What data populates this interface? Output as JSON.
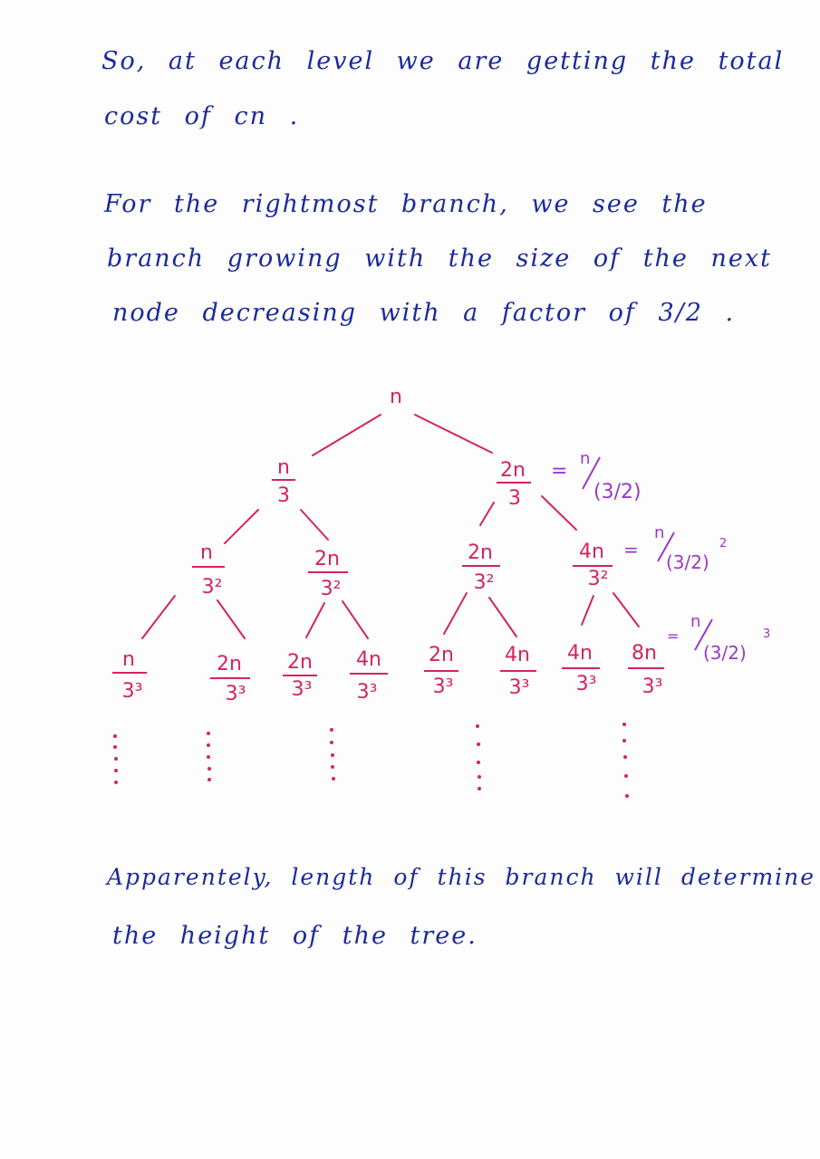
{
  "text": {
    "p1_line1": "So, at each level we are getting the total",
    "p1_line2": "cost of cn .",
    "p2_line1": "For the rightmost branch, we see the",
    "p2_line2": "branch growing with the size of the next",
    "p2_line3": "node decreasing with a factor of 3/2 .",
    "p3_line1": "Apparentely, length of this branch will determine",
    "p3_line2": "the height of the tree."
  },
  "tree": {
    "root": "n",
    "level1": [
      {
        "num": "n",
        "den": "3"
      },
      {
        "num": "2n",
        "den": "3"
      }
    ],
    "level2": [
      {
        "num": "n",
        "den": "3²"
      },
      {
        "num": "2n",
        "den": "3²"
      },
      {
        "num": "2n",
        "den": "3²"
      },
      {
        "num": "4n",
        "den": "3²"
      }
    ],
    "level3": [
      {
        "num": "n",
        "den": "3³"
      },
      {
        "num": "2n",
        "den": "3³"
      },
      {
        "num": "2n",
        "den": "3³"
      },
      {
        "num": "4n",
        "den": "3³"
      },
      {
        "num": "2n",
        "den": "3³"
      },
      {
        "num": "4n",
        "den": "3³"
      },
      {
        "num": "4n",
        "den": "3³"
      },
      {
        "num": "8n",
        "den": "3³"
      }
    ],
    "annotations": [
      {
        "eq": "=",
        "num": "n",
        "den": "(3/2)",
        "exp": ""
      },
      {
        "eq": "=",
        "num": "n",
        "den": "(3/2)",
        "exp": "2"
      },
      {
        "eq": "=",
        "num": "n",
        "den": "(3/2)",
        "exp": "3"
      }
    ]
  },
  "colors": {
    "ink_blue": "#1b2a9c",
    "ink_pink": "#d4245f",
    "ink_purple": "#9b38c9"
  }
}
